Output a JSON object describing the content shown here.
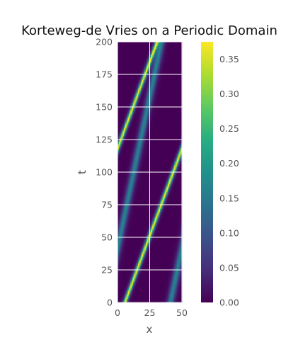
{
  "chart_data": {
    "type": "heatmap",
    "title": "Korteweg-de Vries on a Periodic Domain",
    "xlabel": "x",
    "ylabel": "t",
    "xlim": [
      0,
      50
    ],
    "ylim": [
      0,
      200
    ],
    "x_ticks": [
      "0",
      "25",
      "50"
    ],
    "y_ticks": [
      "0",
      "25",
      "50",
      "75",
      "100",
      "125",
      "150",
      "175",
      "200"
    ],
    "grid": true,
    "colormap": "viridis",
    "colorbar": {
      "range": [
        0,
        0.375
      ],
      "ticks": [
        "0.00",
        "0.05",
        "0.10",
        "0.15",
        "0.20",
        "0.25",
        "0.30",
        "0.35"
      ]
    },
    "solitons": [
      {
        "amplitude": 0.375,
        "speed": 0.375,
        "x0": 5.7,
        "width": 1.4
      },
      {
        "amplitude": 0.17,
        "speed": 0.215,
        "x0": 41.0,
        "width": 2.3
      }
    ]
  }
}
